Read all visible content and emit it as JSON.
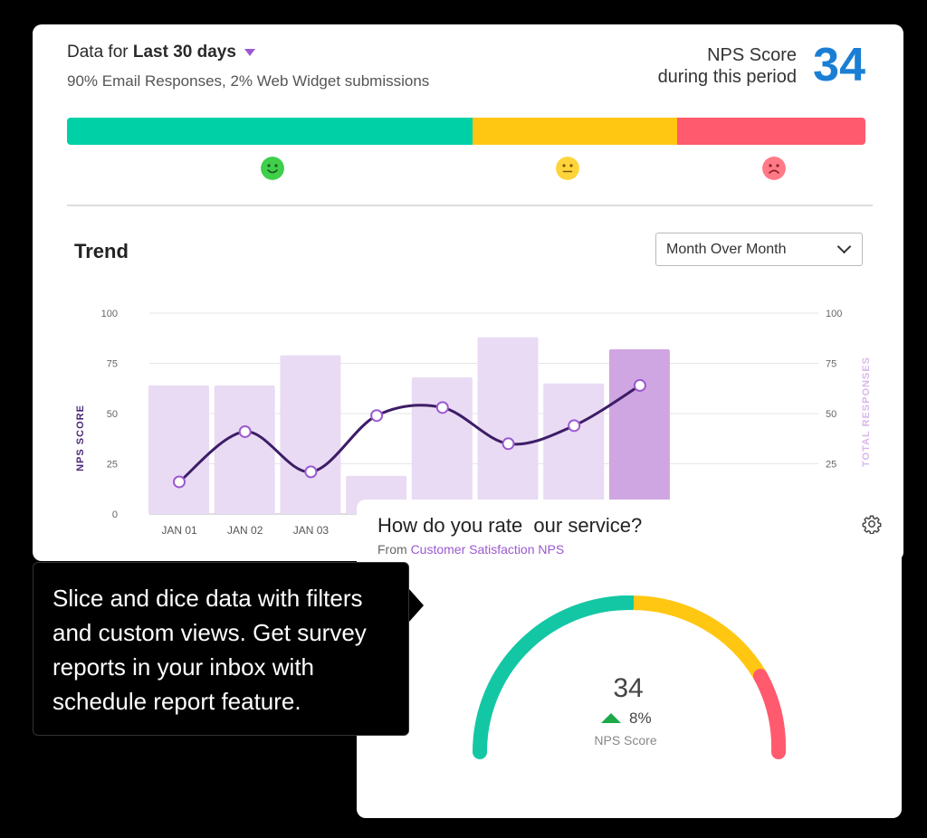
{
  "header": {
    "data_for_prefix": "Data for ",
    "period": "Last 30 days",
    "subtitle": "90% Email Responses, 2% Web Widget submissions",
    "nps_label_line1": "NPS Score",
    "nps_label_line2": "during this period",
    "nps_value": "34"
  },
  "sentiment_bar": {
    "promoters_color": "#00d0a6",
    "passives_color": "#ffc712",
    "detractors_color": "#ff5a6e",
    "icons": [
      "happy-face-icon",
      "neutral-face-icon",
      "sad-face-icon"
    ]
  },
  "trend": {
    "title": "Trend",
    "view_select": "Month Over Month"
  },
  "chart_data": {
    "type": "bar",
    "categories": [
      "JAN 01",
      "JAN 02",
      "JAN 03",
      "",
      "",
      "",
      "",
      ""
    ],
    "series": [
      {
        "values": [
          64,
          64,
          79,
          19,
          68,
          88,
          65,
          82
        ]
      },
      {
        "values": [
          16,
          41,
          21,
          49,
          53,
          35,
          44,
          64
        ]
      }
    ],
    "ylabel": "NPS SCORE",
    "y2label": "TOTAL RESPONSES",
    "ylim": [
      0,
      100
    ],
    "yticks": [
      "100",
      "75",
      "50",
      "25",
      "0"
    ],
    "y2ticks": [
      "100",
      "75",
      "50",
      "25"
    ],
    "grid": true
  },
  "rate_card": {
    "title": "How do you rate  our service?",
    "from_prefix": "From ",
    "source": "Customer Satisfaction NPS",
    "score": "34",
    "change": "8%",
    "score_label": "NPS Score"
  },
  "tooltip": {
    "text": "Slice and dice data with filters and custom views. Get survey reports in your inbox with schedule report feature."
  }
}
